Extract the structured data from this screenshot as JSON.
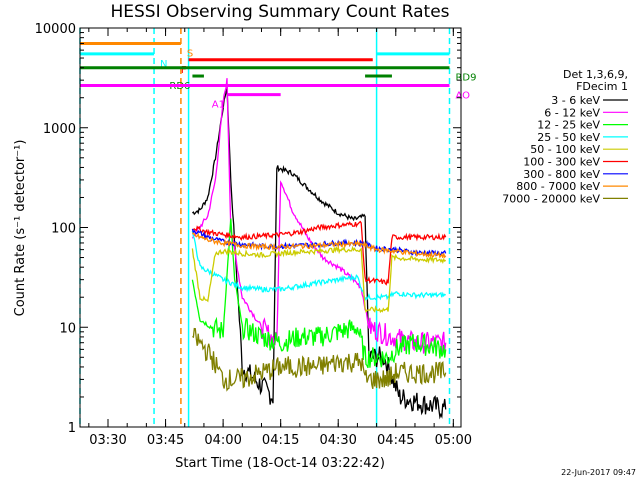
{
  "chart_data": {
    "type": "line",
    "title": "HESSI Observing Summary Count Rates",
    "xlabel": "Start Time (18-Oct-14 03:22:42)",
    "ylabel": "Count Rate (s⁻¹ detector⁻¹)",
    "yscale": "log",
    "ylim": [
      1,
      10000
    ],
    "xlim": [
      "03:22:42",
      "05:02:00"
    ],
    "x_ticks": [
      "03:30",
      "03:45",
      "04:00",
      "04:15",
      "04:30",
      "04:45",
      "05:00"
    ],
    "y_ticks": [
      "1",
      "10",
      "100",
      "1000",
      "10000"
    ],
    "legend": {
      "position": "right",
      "header": [
        "Det 1,3,6,9,",
        "FDecim 1"
      ],
      "entries": [
        {
          "label": "3 - 6 keV",
          "color": "#000000"
        },
        {
          "label": "6 - 12 keV",
          "color": "#ff00ff"
        },
        {
          "label": "12 - 25 keV",
          "color": "#00ff00"
        },
        {
          "label": "25 - 50 keV",
          "color": "#00ffff"
        },
        {
          "label": "50 - 100 keV",
          "color": "#cccc00"
        },
        {
          "label": "100 - 300 keV",
          "color": "#ff0000"
        },
        {
          "label": "300 - 800 keV",
          "color": "#0000ff"
        },
        {
          "label": "800 - 7000 keV",
          "color": "#ff8800"
        },
        {
          "label": "7000 - 20000 keV",
          "color": "#808000"
        }
      ]
    },
    "series": [
      {
        "name": "3 - 6 keV",
        "color": "#000000",
        "points": [
          [
            "03:52:00",
            140
          ],
          [
            "03:54:00",
            150
          ],
          [
            "03:56:00",
            200
          ],
          [
            "03:58:00",
            500
          ],
          [
            "04:00:00",
            1600
          ],
          [
            "04:01:00",
            2600
          ],
          [
            "04:02:00",
            300
          ],
          [
            "04:05:00",
            4
          ],
          [
            "04:13:00",
            2
          ],
          [
            "04:14:00",
            400
          ],
          [
            "04:18:00",
            350
          ],
          [
            "04:22:00",
            250
          ],
          [
            "04:26:00",
            180
          ],
          [
            "04:30:00",
            140
          ],
          [
            "04:34:00",
            120
          ],
          [
            "04:37:00",
            130
          ],
          [
            "04:38:00",
            5
          ],
          [
            "04:42:00",
            5
          ],
          [
            "04:46:00",
            2
          ],
          [
            "04:58:00",
            1.5
          ]
        ]
      },
      {
        "name": "6 - 12 keV",
        "color": "#ff00ff",
        "points": [
          [
            "03:52:00",
            80
          ],
          [
            "03:56:00",
            130
          ],
          [
            "03:58:00",
            300
          ],
          [
            "04:00:00",
            1800
          ],
          [
            "04:01:00",
            3000
          ],
          [
            "04:02:00",
            100
          ],
          [
            "04:05:00",
            20
          ],
          [
            "04:10:00",
            10
          ],
          [
            "04:14:00",
            7
          ],
          [
            "04:15:00",
            300
          ],
          [
            "04:18:00",
            150
          ],
          [
            "04:22:00",
            80
          ],
          [
            "04:26:00",
            50
          ],
          [
            "04:30:00",
            40
          ],
          [
            "04:34:00",
            30
          ],
          [
            "04:36:00",
            25
          ],
          [
            "04:38:00",
            10
          ],
          [
            "04:44:00",
            8
          ],
          [
            "04:50:00",
            7
          ],
          [
            "04:58:00",
            7
          ]
        ]
      },
      {
        "name": "12 - 25 keV",
        "color": "#00ff00",
        "points": [
          [
            "03:52:00",
            30
          ],
          [
            "03:54:00",
            12
          ],
          [
            "03:57:00",
            10
          ],
          [
            "04:00:00",
            9
          ],
          [
            "04:02:00",
            120
          ],
          [
            "04:03:00",
            30
          ],
          [
            "04:05:00",
            10
          ],
          [
            "04:10:00",
            8
          ],
          [
            "04:15:00",
            7
          ],
          [
            "04:20:00",
            8
          ],
          [
            "04:25:00",
            8
          ],
          [
            "04:30:00",
            9
          ],
          [
            "04:35:00",
            10
          ],
          [
            "04:37:00",
            5
          ],
          [
            "04:43:00",
            5
          ],
          [
            "04:45:00",
            6
          ],
          [
            "04:50:00",
            7
          ],
          [
            "04:58:00",
            6
          ]
        ]
      },
      {
        "name": "25 - 50 keV",
        "color": "#00ffff",
        "points": [
          [
            "03:52:00",
            90
          ],
          [
            "03:54:00",
            40
          ],
          [
            "03:57:00",
            35
          ],
          [
            "04:00:00",
            30
          ],
          [
            "04:05:00",
            25
          ],
          [
            "04:10:00",
            24
          ],
          [
            "04:15:00",
            24
          ],
          [
            "04:20:00",
            26
          ],
          [
            "04:25:00",
            28
          ],
          [
            "04:30:00",
            30
          ],
          [
            "04:35:00",
            32
          ],
          [
            "04:37:00",
            20
          ],
          [
            "04:43:00",
            20
          ],
          [
            "04:45:00",
            22
          ],
          [
            "04:50:00",
            21
          ],
          [
            "04:58:00",
            21
          ]
        ]
      },
      {
        "name": "50 - 100 keV",
        "color": "#cccc00",
        "points": [
          [
            "03:52:00",
            60
          ],
          [
            "03:54:00",
            20
          ],
          [
            "03:56:00",
            18
          ],
          [
            "03:58:00",
            55
          ],
          [
            "04:00:00",
            58
          ],
          [
            "04:05:00",
            55
          ],
          [
            "04:10:00",
            53
          ],
          [
            "04:15:00",
            55
          ],
          [
            "04:20:00",
            57
          ],
          [
            "04:25:00",
            58
          ],
          [
            "04:30:00",
            60
          ],
          [
            "04:36:00",
            60
          ],
          [
            "04:37:00",
            15
          ],
          [
            "04:43:00",
            15
          ],
          [
            "04:44:00",
            50
          ],
          [
            "04:50:00",
            48
          ],
          [
            "04:58:00",
            47
          ]
        ]
      },
      {
        "name": "100 - 300 keV",
        "color": "#ff0000",
        "points": [
          [
            "03:52:00",
            100
          ],
          [
            "03:56:00",
            90
          ],
          [
            "04:00:00",
            85
          ],
          [
            "04:05:00",
            80
          ],
          [
            "04:10:00",
            82
          ],
          [
            "04:15:00",
            85
          ],
          [
            "04:20:00",
            90
          ],
          [
            "04:25:00",
            100
          ],
          [
            "04:30:00",
            105
          ],
          [
            "04:36:00",
            110
          ],
          [
            "04:37:00",
            30
          ],
          [
            "04:43:00",
            28
          ],
          [
            "04:44:00",
            80
          ],
          [
            "04:50:00",
            80
          ],
          [
            "04:58:00",
            80
          ]
        ]
      },
      {
        "name": "300 - 800 keV",
        "color": "#0000ff",
        "points": [
          [
            "03:52:00",
            95
          ],
          [
            "03:56:00",
            80
          ],
          [
            "04:00:00",
            72
          ],
          [
            "04:05:00",
            68
          ],
          [
            "04:10:00",
            65
          ],
          [
            "04:15:00",
            65
          ],
          [
            "04:20:00",
            66
          ],
          [
            "04:25:00",
            68
          ],
          [
            "04:30:00",
            70
          ],
          [
            "04:36:00",
            70
          ],
          [
            "04:40:00",
            62
          ],
          [
            "04:45:00",
            60
          ],
          [
            "04:50:00",
            56
          ],
          [
            "04:58:00",
            55
          ]
        ]
      },
      {
        "name": "800 - 7000 keV",
        "color": "#ff8800",
        "points": [
          [
            "03:52:00",
            85
          ],
          [
            "03:56:00",
            75
          ],
          [
            "04:00:00",
            70
          ],
          [
            "04:05:00",
            66
          ],
          [
            "04:10:00",
            64
          ],
          [
            "04:15:00",
            64
          ],
          [
            "04:20:00",
            65
          ],
          [
            "04:25:00",
            66
          ],
          [
            "04:30:00",
            68
          ],
          [
            "04:36:00",
            68
          ],
          [
            "04:40:00",
            60
          ],
          [
            "04:45:00",
            58
          ],
          [
            "04:50:00",
            55
          ],
          [
            "04:58:00",
            52
          ]
        ]
      },
      {
        "name": "7000 - 20000 keV",
        "color": "#808000",
        "points": [
          [
            "03:52:00",
            8
          ],
          [
            "03:54:00",
            7
          ],
          [
            "03:57:00",
            5
          ],
          [
            "04:00:00",
            3
          ],
          [
            "04:05:00",
            3
          ],
          [
            "04:10:00",
            3.5
          ],
          [
            "04:15:00",
            4
          ],
          [
            "04:20:00",
            4
          ],
          [
            "04:25:00",
            4
          ],
          [
            "04:30:00",
            4.5
          ],
          [
            "04:36:00",
            4.5
          ],
          [
            "04:37:00",
            3
          ],
          [
            "04:43:00",
            3
          ],
          [
            "04:45:00",
            3.5
          ],
          [
            "04:50:00",
            3.5
          ],
          [
            "04:58:00",
            3.5
          ]
        ]
      }
    ],
    "vertical_lines": [
      {
        "x": "03:22:42",
        "color": "#00ffff",
        "style": "dashed"
      },
      {
        "x": "03:42:00",
        "color": "#00ffff",
        "style": "dashed"
      },
      {
        "x": "03:49:00",
        "color": "#ff8800",
        "style": "dashed"
      },
      {
        "x": "03:51:00",
        "color": "#00ffff",
        "style": "solid"
      },
      {
        "x": "04:40:00",
        "color": "#00ffff",
        "style": "solid"
      },
      {
        "x": "04:59:00",
        "color": "#00ffff",
        "style": "dashed"
      }
    ],
    "flag_bars": [
      {
        "label": "S",
        "color": "#ff8800",
        "value": 7000,
        "start": "03:22:42",
        "end": "03:49:00"
      },
      {
        "label": "N",
        "color": "#00ffff",
        "value": 5500,
        "start": "03:22:42",
        "end": "03:42:00"
      },
      {
        "label": "",
        "color": "#00ffff",
        "value": 5500,
        "start": "04:40:00",
        "end": "04:59:00"
      },
      {
        "label": "F",
        "color": "#ff0000",
        "value": 4800,
        "start": "03:51:00",
        "end": "04:39:00"
      },
      {
        "label": "RD9",
        "color": "#008000",
        "value": 4000,
        "start": "03:22:42",
        "end": "04:59:00"
      },
      {
        "label": "RD6",
        "color": "#008000",
        "value": 3300,
        "start": "03:52:00",
        "end": "03:55:00"
      },
      {
        "label": "",
        "color": "#008000",
        "value": 3300,
        "start": "04:37:00",
        "end": "04:44:00"
      },
      {
        "label": "AO",
        "color": "#ff00ff",
        "value": 2650,
        "start": "03:22:42",
        "end": "04:59:00"
      },
      {
        "label": "A1",
        "color": "#ff00ff",
        "value": 2150,
        "start": "04:01:00",
        "end": "04:15:00"
      }
    ]
  },
  "timestamp": "22-Jun-2017 09:47"
}
